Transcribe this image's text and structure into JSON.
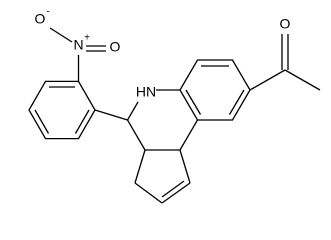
{
  "molecule": {
    "labels": {
      "nitro_oxygen_1": "O",
      "nitro_oxygen_1_charge": "-",
      "nitro_nitrogen": "N",
      "nitro_nitrogen_charge": "+",
      "nitro_oxygen_2": "O",
      "amine": "HN",
      "ketone_oxygen": "O"
    }
  }
}
